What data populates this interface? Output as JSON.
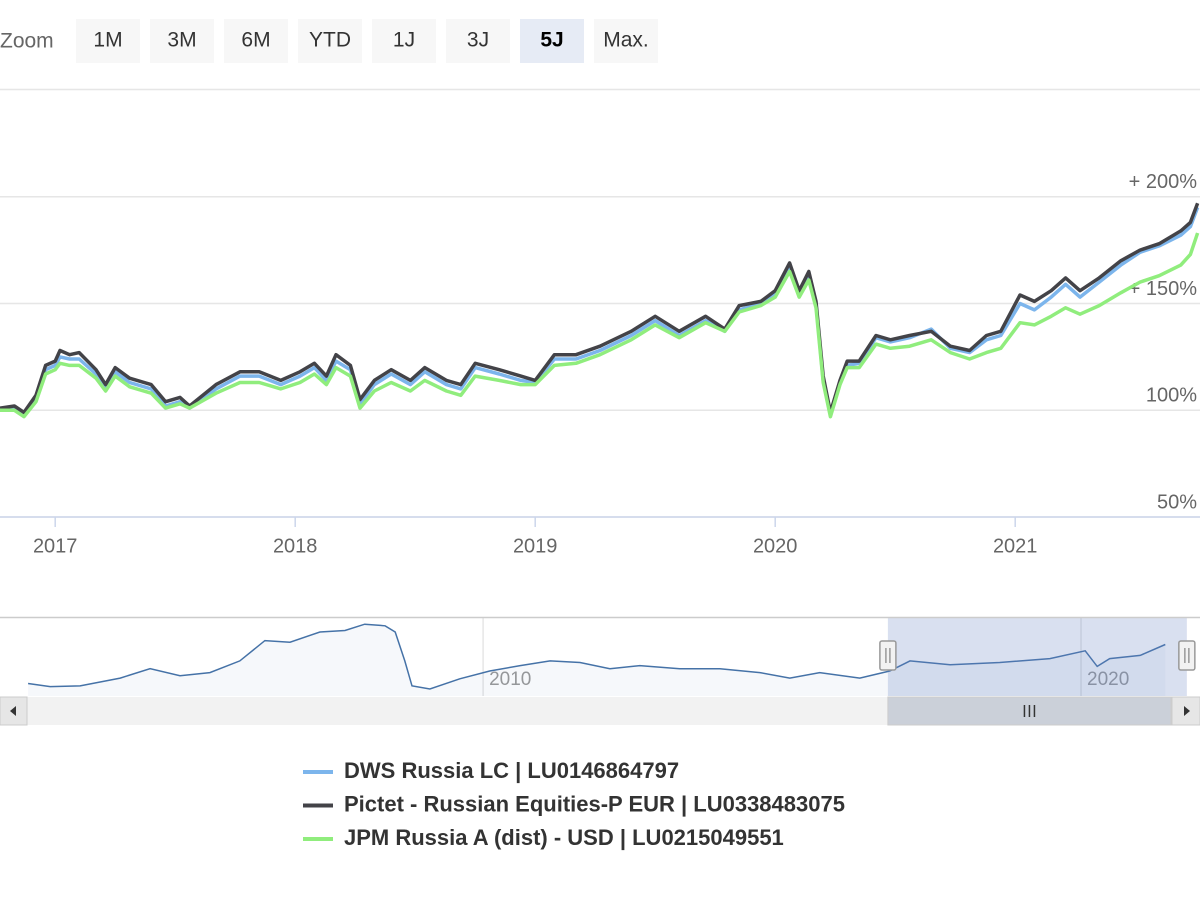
{
  "chart_data": {
    "type": "line",
    "range_selector": {
      "label": "Zoom",
      "buttons": [
        "1M",
        "3M",
        "6M",
        "YTD",
        "1J",
        "3J",
        "5J",
        "Max."
      ],
      "selected": 6
    },
    "x": [
      2016.77,
      2016.83,
      2016.87,
      2016.92,
      2016.96,
      2017.0,
      2017.02,
      2017.06,
      2017.1,
      2017.17,
      2017.21,
      2017.25,
      2017.31,
      2017.4,
      2017.46,
      2017.52,
      2017.56,
      2017.67,
      2017.77,
      2017.85,
      2017.94,
      2018.02,
      2018.08,
      2018.13,
      2018.17,
      2018.23,
      2018.27,
      2018.33,
      2018.4,
      2018.48,
      2018.54,
      2018.63,
      2018.69,
      2018.75,
      2018.85,
      2018.94,
      2019.0,
      2019.08,
      2019.17,
      2019.27,
      2019.4,
      2019.5,
      2019.6,
      2019.71,
      2019.79,
      2019.85,
      2019.94,
      2020.0,
      2020.06,
      2020.1,
      2020.14,
      2020.17,
      2020.2,
      2020.23,
      2020.27,
      2020.3,
      2020.35,
      2020.42,
      2020.48,
      2020.56,
      2020.65,
      2020.73,
      2020.81,
      2020.88,
      2020.94,
      2021.02,
      2021.08,
      2021.15,
      2021.21,
      2021.27,
      2021.35,
      2021.44,
      2021.52,
      2021.6,
      2021.69,
      2021.73,
      2021.76
    ],
    "series": [
      {
        "name": "DWS Russia LC | LU0146864797",
        "color": "#7cb5ec",
        "values": [
          100,
          101,
          98,
          105,
          119,
          121,
          125,
          124,
          124,
          117,
          110,
          118,
          113,
          110,
          102,
          104,
          101,
          110,
          116,
          116,
          112,
          116,
          120,
          114,
          123,
          119,
          103,
          112,
          117,
          112,
          118,
          112,
          110,
          120,
          117,
          114,
          113,
          124,
          124,
          128,
          135,
          142,
          135,
          142,
          137,
          147,
          150,
          155,
          167,
          155,
          163,
          150,
          114,
          98,
          113,
          121,
          122,
          134,
          132,
          134,
          138,
          129,
          127,
          133,
          135,
          150,
          147,
          153,
          159,
          153,
          160,
          168,
          174,
          177,
          182,
          186,
          195
        ]
      },
      {
        "name": "Pictet - Russian Equities-P EUR | LU0338483075",
        "color": "#434348",
        "values": [
          101,
          102,
          99,
          107,
          121,
          123,
          128,
          126,
          127,
          119,
          112,
          120,
          115,
          112,
          104,
          106,
          102,
          112,
          118,
          118,
          114,
          118,
          122,
          116,
          126,
          121,
          105,
          114,
          119,
          114,
          120,
          114,
          112,
          122,
          119,
          116,
          114,
          126,
          126,
          130,
          137,
          144,
          137,
          144,
          138,
          149,
          151,
          156,
          169,
          156,
          165,
          151,
          116,
          99,
          114,
          123,
          123,
          135,
          133,
          135,
          137,
          130,
          128,
          135,
          137,
          154,
          151,
          156,
          162,
          156,
          162,
          170,
          175,
          178,
          184,
          188,
          197
        ]
      },
      {
        "name": "JPM Russia A (dist) - USD | LU0215049551",
        "color": "#90ed7d",
        "values": [
          100,
          100,
          97,
          104,
          117,
          119,
          122,
          121,
          121,
          115,
          109,
          116,
          111,
          108,
          101,
          103,
          101,
          108,
          113,
          113,
          110,
          113,
          117,
          112,
          120,
          116,
          101,
          109,
          113,
          109,
          114,
          109,
          107,
          116,
          114,
          112,
          112,
          121,
          122,
          126,
          133,
          140,
          134,
          141,
          137,
          146,
          149,
          153,
          165,
          153,
          161,
          148,
          113,
          97,
          112,
          120,
          120,
          131,
          129,
          130,
          133,
          127,
          124,
          127,
          129,
          141,
          140,
          144,
          148,
          145,
          149,
          155,
          160,
          163,
          168,
          173,
          183
        ]
      }
    ],
    "xlim": [
      2016.77,
      2021.77
    ],
    "xticks": [
      2017,
      2018,
      2019,
      2020,
      2021
    ],
    "ylim": [
      50,
      250
    ],
    "yticks": [
      {
        "value": 50,
        "label": "50%"
      },
      {
        "value": 100,
        "label": "100%"
      },
      {
        "value": 150,
        "label": "+ 150%"
      },
      {
        "value": 200,
        "label": "+ 200%"
      }
    ],
    "grid": true,
    "navigator": {
      "color": "#4572a7",
      "x": [
        2002.39,
        2002.76,
        2003.26,
        2003.93,
        2004.43,
        2004.93,
        2005.43,
        2005.93,
        2006.35,
        2006.77,
        2007.27,
        2007.69,
        2008.02,
        2008.36,
        2008.53,
        2008.69,
        2008.81,
        2009.11,
        2009.61,
        2010.11,
        2010.62,
        2011.12,
        2011.62,
        2012.12,
        2012.62,
        2013.29,
        2013.96,
        2014.63,
        2015.13,
        2015.63,
        2016.3,
        2016.8,
        2017.14,
        2017.81,
        2018.64,
        2019.48,
        2020.07,
        2020.27,
        2020.48,
        2020.99,
        2021.41
      ],
      "values": [
        16,
        12,
        13,
        23,
        35,
        26,
        30,
        45,
        71,
        69,
        82,
        84,
        92,
        90,
        82,
        45,
        13,
        9,
        22,
        32,
        39,
        45,
        43,
        35,
        39,
        35,
        35,
        30,
        23,
        30,
        23,
        32,
        45,
        40,
        43,
        48,
        58,
        38,
        48,
        52,
        66
      ],
      "xlim": [
        2001.92,
        2021.99
      ],
      "ylim": [
        0,
        100
      ],
      "xticks": [
        2010,
        2020
      ]
    }
  }
}
